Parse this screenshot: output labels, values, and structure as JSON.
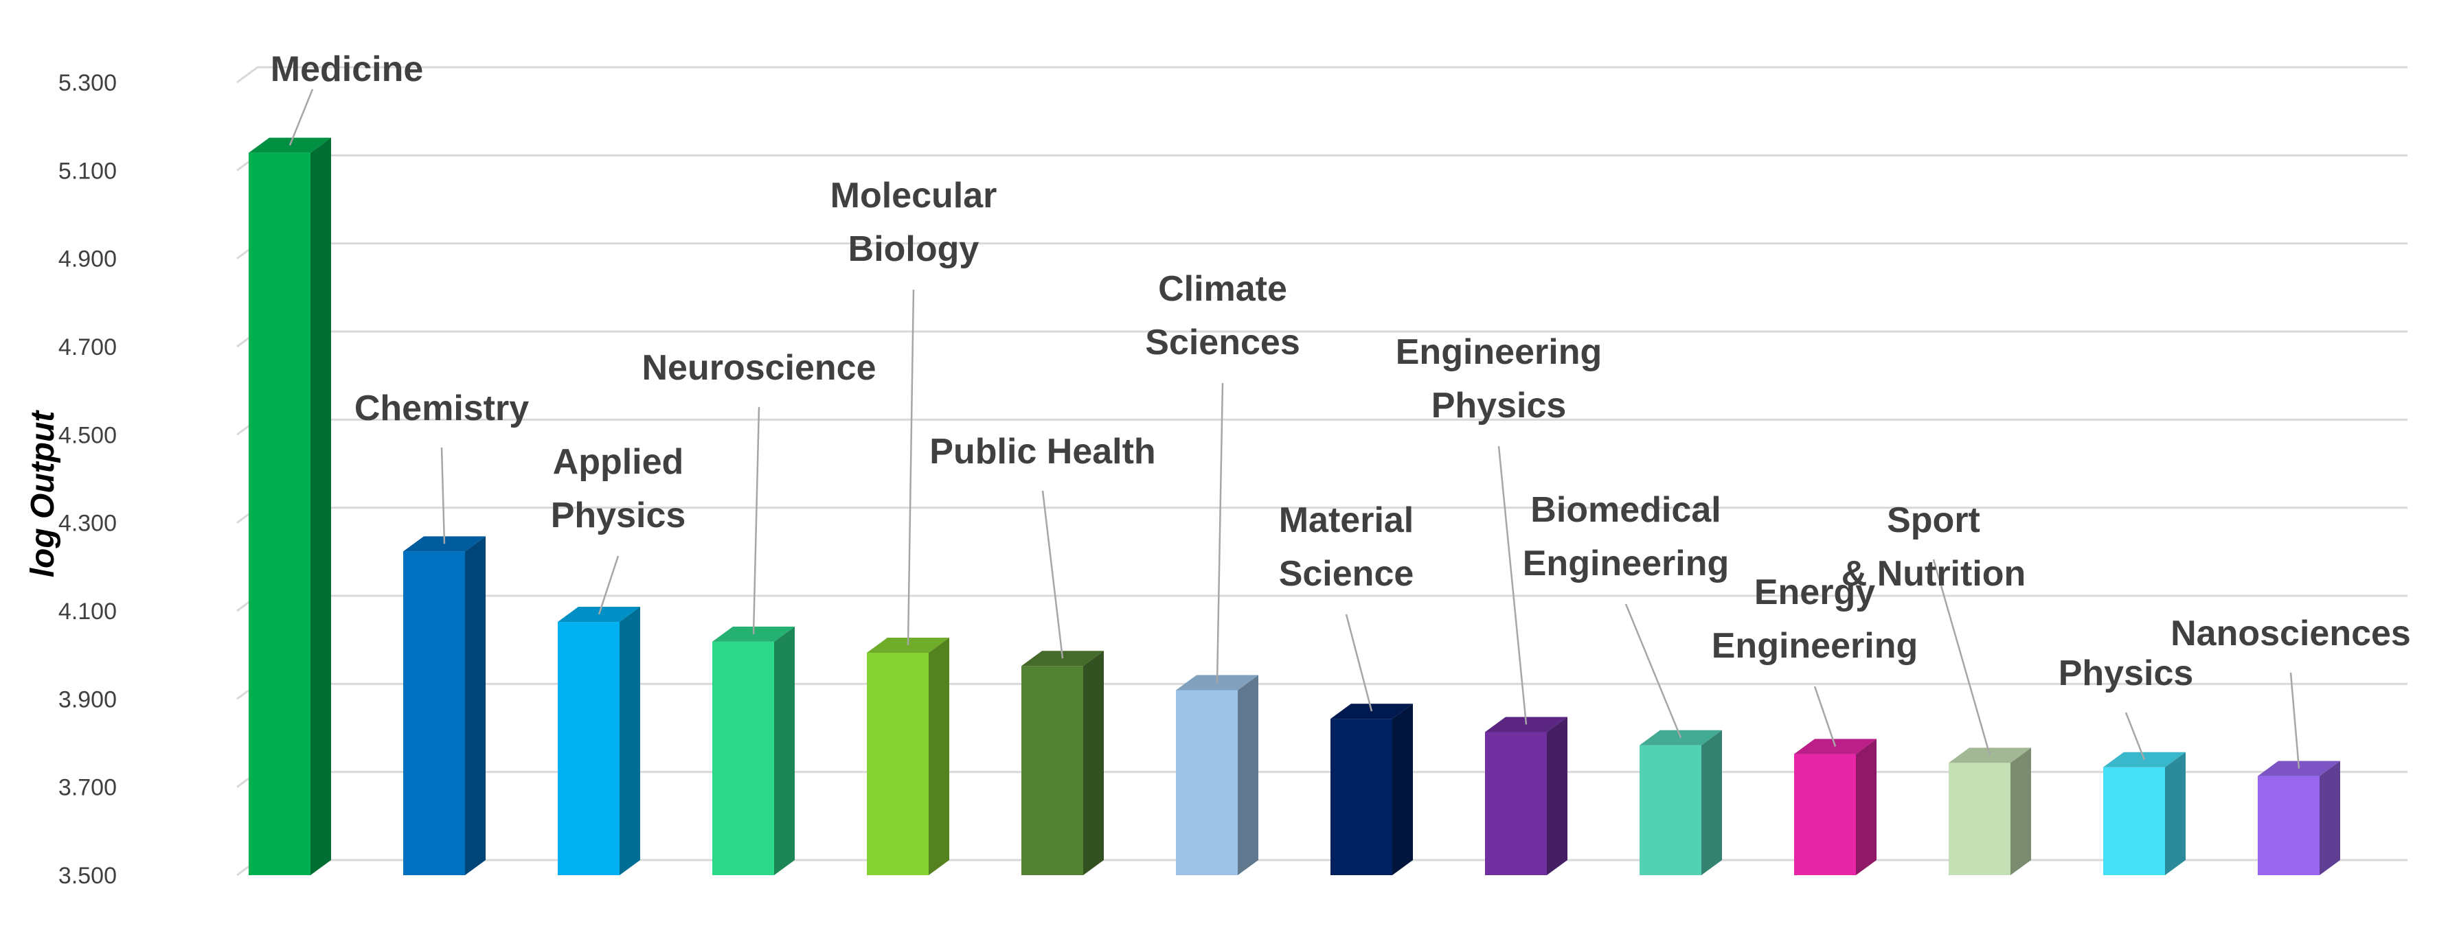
{
  "chart_data": {
    "type": "bar",
    "title": "",
    "xlabel": "",
    "ylabel": "log Output",
    "ylim": [
      3.5,
      5.3
    ],
    "yticks": [
      "3.500",
      "3.700",
      "3.900",
      "4.100",
      "4.300",
      "4.500",
      "4.700",
      "4.900",
      "5.100",
      "5.300"
    ],
    "grid": true,
    "style": "3d-column",
    "categories": [
      "Medicine",
      "Chemistry",
      "Applied Physics",
      "Neuroscience",
      "Molecular Biology",
      "Public Health",
      "Climate Sciences",
      "Material Science",
      "Engineering Physics",
      "Biomedical Engineering",
      "Energy Engineering",
      "Sport & Nutrition",
      "Physics",
      "Nanosciences"
    ],
    "labels": [
      [
        "Medicine"
      ],
      [
        "Chemistry"
      ],
      [
        "Applied",
        "Physics"
      ],
      [
        "Neuroscience"
      ],
      [
        "Molecular",
        "Biology"
      ],
      [
        "Public Health"
      ],
      [
        "Climate",
        "Sciences"
      ],
      [
        "Material",
        "Science"
      ],
      [
        "Engineering",
        "Physics"
      ],
      [
        "Biomedical",
        "Engineering"
      ],
      [
        "Energy",
        "Engineering"
      ],
      [
        "Sport",
        "& Nutrition"
      ],
      [
        "Physics"
      ],
      [
        "Nanosciences"
      ]
    ],
    "values": [
      5.14,
      4.235,
      4.075,
      4.03,
      4.005,
      3.975,
      3.92,
      3.855,
      3.825,
      3.795,
      3.775,
      3.755,
      3.745,
      3.725
    ],
    "colors": [
      "#00B050",
      "#0070C0",
      "#00B0F0",
      "#2DD88A",
      "#86D232",
      "#548235",
      "#9DC3E6",
      "#002060",
      "#7030A0",
      "#52D1B3",
      "#E626A6",
      "#C5E0B4",
      "#45E0F8",
      "#9966EE"
    ]
  }
}
